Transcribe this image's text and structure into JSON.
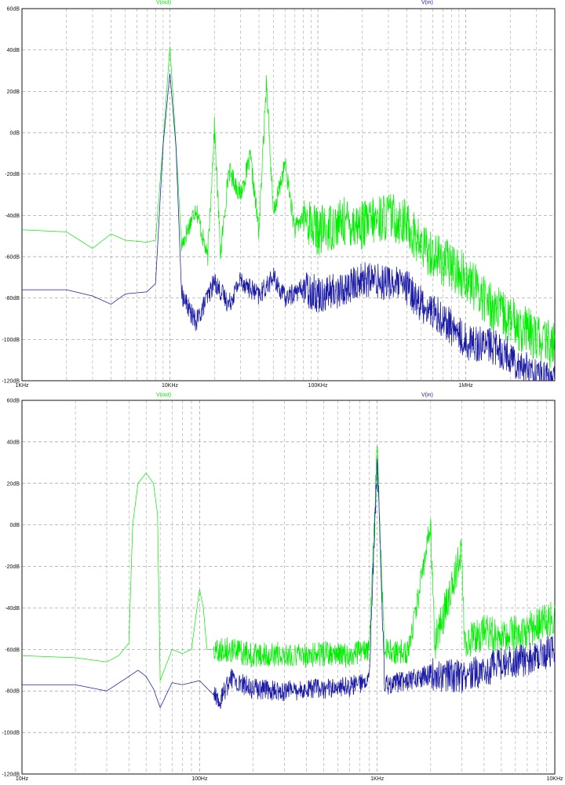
{
  "chart_data": [
    {
      "type": "line",
      "title": "",
      "xlabel": "",
      "ylabel": "",
      "x_scale": "log",
      "xlim_hz": [
        1000,
        4000000
      ],
      "ylim": [
        -120,
        60
      ],
      "grid": true,
      "legend_placement": "top",
      "x_tick_labels": [
        "1KHz",
        "10KHz",
        "100KHz",
        "1MHz"
      ],
      "x_tick_values_hz": [
        1000,
        10000,
        100000,
        1000000
      ],
      "y_tick_labels": [
        "60dB",
        "40dB",
        "20dB",
        "0dB",
        "-20dB",
        "-40dB",
        "-60dB",
        "-80dB",
        "-100dB",
        "-120dB"
      ],
      "y_tick_values": [
        60,
        40,
        20,
        0,
        -20,
        -40,
        -60,
        -80,
        -100,
        -120
      ],
      "series": [
        {
          "name": "V(out)",
          "color": "#00ee00",
          "points": [
            [
              1000,
              -47
            ],
            [
              2000,
              -48
            ],
            [
              3000,
              -56
            ],
            [
              4000,
              -49
            ],
            [
              5000,
              -52
            ],
            [
              7000,
              -53
            ],
            [
              8000,
              -52
            ],
            [
              9000,
              -5
            ],
            [
              10000,
              42
            ],
            [
              11000,
              -6
            ],
            [
              12000,
              -55
            ],
            [
              15000,
              -36
            ],
            [
              18000,
              -61
            ],
            [
              20000,
              3
            ],
            [
              22000,
              -59
            ],
            [
              25000,
              -18
            ],
            [
              30000,
              -30
            ],
            [
              35000,
              -12
            ],
            [
              40000,
              -48
            ],
            [
              45000,
              26
            ],
            [
              50000,
              -40
            ],
            [
              60000,
              -15
            ],
            [
              70000,
              -47
            ],
            [
              80000,
              -40
            ],
            [
              100000,
              -48
            ],
            [
              150000,
              -43
            ],
            [
              200000,
              -45
            ],
            [
              300000,
              -40
            ],
            [
              400000,
              -44
            ],
            [
              500000,
              -55
            ],
            [
              700000,
              -62
            ],
            [
              1000000,
              -70
            ],
            [
              1500000,
              -84
            ],
            [
              2000000,
              -91
            ],
            [
              3000000,
              -99
            ],
            [
              4000000,
              -104
            ]
          ]
        },
        {
          "name": "V(in)",
          "color": "#1a1aa6",
          "points": [
            [
              1000,
              -76
            ],
            [
              2000,
              -76
            ],
            [
              3000,
              -79
            ],
            [
              4000,
              -83
            ],
            [
              5000,
              -78
            ],
            [
              7000,
              -77
            ],
            [
              8000,
              -73
            ],
            [
              9000,
              -6
            ],
            [
              10000,
              29
            ],
            [
              11000,
              -7
            ],
            [
              12000,
              -78
            ],
            [
              15000,
              -92
            ],
            [
              20000,
              -72
            ],
            [
              25000,
              -83
            ],
            [
              30000,
              -71
            ],
            [
              40000,
              -79
            ],
            [
              50000,
              -70
            ],
            [
              60000,
              -80
            ],
            [
              80000,
              -75
            ],
            [
              100000,
              -78
            ],
            [
              150000,
              -76
            ],
            [
              200000,
              -71
            ],
            [
              300000,
              -72
            ],
            [
              400000,
              -75
            ],
            [
              500000,
              -83
            ],
            [
              700000,
              -90
            ],
            [
              1000000,
              -101
            ],
            [
              1500000,
              -103
            ],
            [
              2000000,
              -108
            ],
            [
              3000000,
              -118
            ],
            [
              4000000,
              -120
            ]
          ]
        }
      ]
    },
    {
      "type": "line",
      "title": "",
      "xlabel": "",
      "ylabel": "",
      "x_scale": "log",
      "xlim_hz": [
        10,
        10000
      ],
      "ylim": [
        -120,
        60
      ],
      "grid": true,
      "legend_placement": "top",
      "x_tick_labels": [
        "10Hz",
        "100Hz",
        "1KHz",
        "10KHz"
      ],
      "x_tick_values_hz": [
        10,
        100,
        1000,
        10000
      ],
      "y_tick_labels": [
        "60dB",
        "40dB",
        "20dB",
        "0dB",
        "-20dB",
        "-40dB",
        "-60dB",
        "-80dB",
        "-100dB",
        "-120dB"
      ],
      "y_tick_values": [
        60,
        40,
        20,
        0,
        -20,
        -40,
        -60,
        -80,
        -100,
        -120
      ],
      "series": [
        {
          "name": "V(out)",
          "color": "#00ee00",
          "points": [
            [
              10,
              -63
            ],
            [
              20,
              -64
            ],
            [
              30,
              -66
            ],
            [
              35,
              -63
            ],
            [
              40,
              -57
            ],
            [
              42,
              0
            ],
            [
              45,
              20
            ],
            [
              50,
              25
            ],
            [
              55,
              20
            ],
            [
              58,
              5
            ],
            [
              60,
              -75
            ],
            [
              70,
              -60
            ],
            [
              80,
              -62
            ],
            [
              90,
              -60
            ],
            [
              95,
              -45
            ],
            [
              100,
              -31
            ],
            [
              105,
              -40
            ],
            [
              110,
              -60
            ],
            [
              150,
              -60
            ],
            [
              200,
              -63
            ],
            [
              300,
              -62
            ],
            [
              400,
              -63
            ],
            [
              500,
              -62
            ],
            [
              700,
              -63
            ],
            [
              900,
              -60
            ],
            [
              950,
              -15
            ],
            [
              1000,
              40
            ],
            [
              1050,
              -15
            ],
            [
              1100,
              -61
            ],
            [
              1500,
              -61
            ],
            [
              2000,
              0
            ],
            [
              2100,
              -58
            ],
            [
              3000,
              -13
            ],
            [
              3100,
              -56
            ],
            [
              4000,
              -52
            ],
            [
              5000,
              -54
            ],
            [
              7000,
              -50
            ],
            [
              10000,
              -45
            ]
          ]
        },
        {
          "name": "V(in)",
          "color": "#1a1aa6",
          "points": [
            [
              10,
              -77
            ],
            [
              20,
              -77
            ],
            [
              30,
              -80
            ],
            [
              40,
              -73
            ],
            [
              45,
              -70
            ],
            [
              50,
              -73
            ],
            [
              55,
              -79
            ],
            [
              60,
              -88
            ],
            [
              70,
              -76
            ],
            [
              80,
              -77
            ],
            [
              100,
              -75
            ],
            [
              130,
              -85
            ],
            [
              150,
              -74
            ],
            [
              200,
              -79
            ],
            [
              300,
              -80
            ],
            [
              500,
              -79
            ],
            [
              700,
              -78
            ],
            [
              900,
              -75
            ],
            [
              950,
              -20
            ],
            [
              1000,
              30
            ],
            [
              1050,
              -20
            ],
            [
              1100,
              -77
            ],
            [
              1500,
              -75
            ],
            [
              2000,
              -72
            ],
            [
              3000,
              -73
            ],
            [
              4000,
              -70
            ],
            [
              5000,
              -67
            ],
            [
              7000,
              -65
            ],
            [
              10000,
              -60
            ]
          ]
        }
      ]
    }
  ]
}
